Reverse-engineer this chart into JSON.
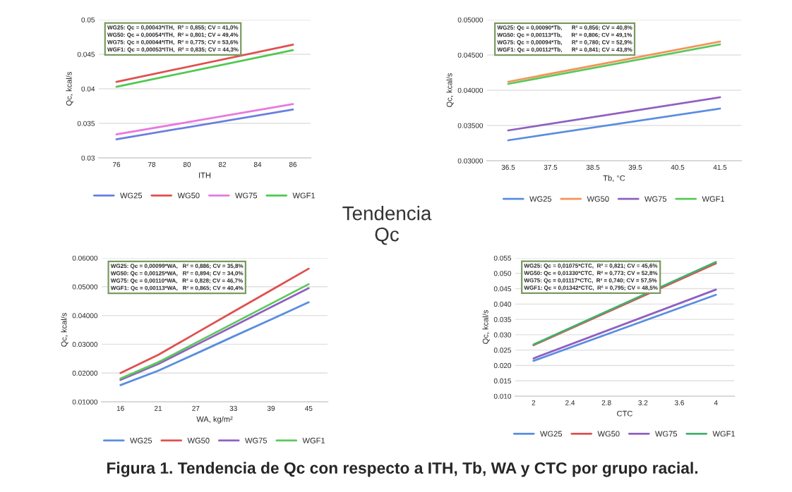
{
  "chart_data": [
    {
      "type": "line",
      "xlabel": "ITH",
      "ylabel": "Qc, kcal/s",
      "x": [
        76,
        86
      ],
      "xlim": [
        75,
        87
      ],
      "xticks": [
        76,
        78,
        80,
        82,
        84,
        86
      ],
      "ylim": [
        0.03,
        0.05
      ],
      "yticks": [
        0.03,
        0.035,
        0.04,
        0.045,
        0.05
      ],
      "grid": "y",
      "legend": "bottom",
      "series": [
        {
          "name": "WG25",
          "color": "#6a7fe0",
          "values": [
            0.0327,
            0.037
          ]
        },
        {
          "name": "WG50",
          "color": "#e05050",
          "values": [
            0.041,
            0.0464
          ]
        },
        {
          "name": "WG75",
          "color": "#e878e0",
          "values": [
            0.0334,
            0.0378
          ]
        },
        {
          "name": "WGF1",
          "color": "#50c850",
          "values": [
            0.0403,
            0.0456
          ]
        }
      ],
      "annotations": [
        "WG25: Qc = 0,00043*ITH,  R² = 0,855; CV = 41,0%",
        "WG50: Qc = 0,00054*ITH,  R² = 0,801; CV = 49,4%",
        "WG75: Qc = 0,00044*ITH,  R² = 0,775; CV = 53,6%",
        "WGF1: Qc = 0,00053*ITH,  R² = 0,835; CV = 44,3%"
      ]
    },
    {
      "type": "line",
      "xlabel": "Tb, °C",
      "ylabel": "Qc, kcal/s",
      "x": [
        36.5,
        41.5
      ],
      "xlim": [
        36.0,
        42.0
      ],
      "xticks": [
        36.5,
        37.5,
        38.5,
        39.5,
        40.5,
        41.5
      ],
      "ylim": [
        0.03,
        0.05
      ],
      "yticks": [
        {
          "value": 0.03,
          "label": "0.03000"
        },
        {
          "value": 0.035,
          "label": "0.03500"
        },
        {
          "value": 0.04,
          "label": "0.04000"
        },
        {
          "value": 0.045,
          "label": "0.04500"
        },
        {
          "value": 0.05,
          "label": "0.05000"
        }
      ],
      "grid": "y",
      "legend": "bottom",
      "series": [
        {
          "name": "WG25",
          "color": "#5a8ee0",
          "values": [
            0.0329,
            0.0374
          ]
        },
        {
          "name": "WG50",
          "color": "#f0955a",
          "values": [
            0.0412,
            0.0469
          ]
        },
        {
          "name": "WG75",
          "color": "#9060c0",
          "values": [
            0.0343,
            0.039
          ]
        },
        {
          "name": "WGF1",
          "color": "#5ac85a",
          "values": [
            0.0409,
            0.0465
          ]
        }
      ],
      "annotations": [
        "WG25: Qc = 0,00090*Tb,      R² = 0,856; CV = 40,8%",
        "WG50: Qc = 0,00113*Tb,      R² = 0,806; CV = 49,1%",
        "WG75: Qc = 0,00094*Tb,      R² = 0,780; CV = 52,9%",
        "WGF1: Qc = 0,00112*Tb,      R² = 0,841; CV = 43,8%"
      ]
    },
    {
      "type": "line",
      "xlabel": "WA, kg/m²",
      "ylabel": "Qc, kcal/s",
      "categories": [
        "16",
        "21",
        "27",
        "33",
        "39",
        "45"
      ],
      "ylim": [
        0.01,
        0.06
      ],
      "yticks": [
        {
          "value": 0.01,
          "label": "0.01000"
        },
        {
          "value": 0.02,
          "label": "0.02000"
        },
        {
          "value": 0.03,
          "label": "0.03000"
        },
        {
          "value": 0.04,
          "label": "0.04000"
        },
        {
          "value": 0.05,
          "label": "0.05000"
        },
        {
          "value": 0.06,
          "label": "0.06000"
        }
      ],
      "grid": "y",
      "legend": "bottom",
      "series": [
        {
          "name": "WG25",
          "color": "#5a8ee0",
          "values": [
            0.0158,
            0.0208,
            0.0267,
            0.0327,
            0.0386,
            0.0446
          ]
        },
        {
          "name": "WG50",
          "color": "#e05050",
          "values": [
            0.02,
            0.0263,
            0.0338,
            0.0413,
            0.0488,
            0.0563
          ]
        },
        {
          "name": "WG75",
          "color": "#9060c0",
          "values": [
            0.0176,
            0.0231,
            0.0297,
            0.0363,
            0.0429,
            0.0495
          ]
        },
        {
          "name": "WGF1",
          "color": "#5ac85a",
          "values": [
            0.0181,
            0.0237,
            0.0305,
            0.0373,
            0.0441,
            0.0509
          ]
        }
      ],
      "annotations": [
        "WG25: Qc = 0,00099*WA,   R² = 0,886; CV = 35,8%",
        "WG50: Qc = 0,00125*WA,   R² = 0,894; CV = 34,0%",
        "WG75: Qc = 0,00110*WA,   R² = 0,828; CV = 46,7%",
        "WGF1: Qc = 0,00113*WA,   R² = 0,865; CV = 40,4%"
      ]
    },
    {
      "type": "line",
      "xlabel": "CTC",
      "ylabel": "Qc, kcal/s",
      "x": [
        2,
        4
      ],
      "xlim": [
        1.8,
        4.2
      ],
      "xticks": [
        2,
        2.4,
        2.8,
        3.2,
        3.6,
        4
      ],
      "ylim": [
        0.01,
        0.055
      ],
      "yticks": [
        {
          "value": 0.01,
          "label": "0.010"
        },
        {
          "value": 0.015,
          "label": "0.015"
        },
        {
          "value": 0.02,
          "label": "0.020"
        },
        {
          "value": 0.025,
          "label": "0.025"
        },
        {
          "value": 0.03,
          "label": "0.030"
        },
        {
          "value": 0.035,
          "label": "0.035"
        },
        {
          "value": 0.04,
          "label": "0.040"
        },
        {
          "value": 0.045,
          "label": "0.045"
        },
        {
          "value": 0.05,
          "label": "0.050"
        },
        {
          "value": 0.055,
          "label": "0.055"
        }
      ],
      "grid": "y",
      "legend": "bottom",
      "series": [
        {
          "name": "WG25",
          "color": "#5a8ee0",
          "values": [
            0.0215,
            0.043
          ]
        },
        {
          "name": "WG50",
          "color": "#e05050",
          "values": [
            0.0266,
            0.0532
          ]
        },
        {
          "name": "WG75",
          "color": "#9060c0",
          "values": [
            0.0223,
            0.0447
          ]
        },
        {
          "name": "WGF1",
          "color": "#40b070",
          "values": [
            0.0268,
            0.0537
          ]
        }
      ],
      "annotations": [
        "WG25: Qc = 0,01075*CTC,  R² = 0,821; CV = 45,6%",
        "WG50: Qc = 0,01330*CTC,  R² = 0,773; CV = 52,8%",
        "WG75: Qc = 0,01117*CTC,  R² = 0,740; CV = 57,5%",
        "WGF1: Qc = 0,01342*CTC,  R² = 0,795; CV = 48,5%"
      ]
    },
    {
      "type": "other",
      "annotations": [
        "Tendencia\nQc",
        "Figura 1. Tendencia de Qc con respecto a ITH, Tb, WA y CTC por grupo racial."
      ]
    }
  ]
}
